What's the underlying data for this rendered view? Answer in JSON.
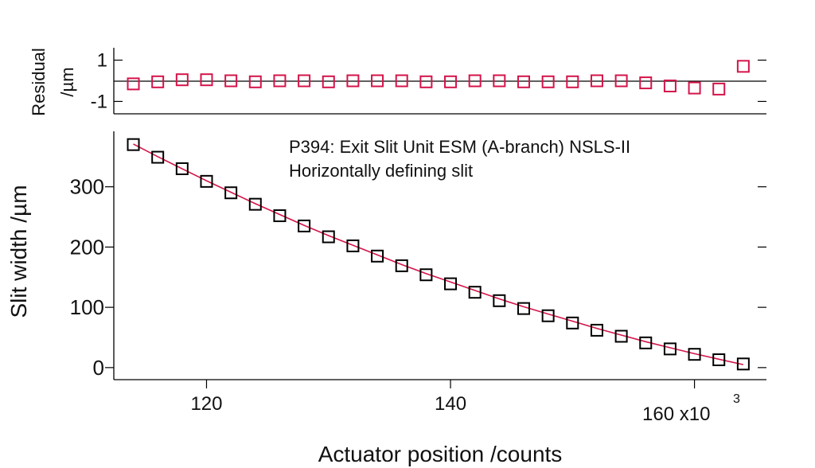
{
  "chart_data": [
    {
      "type": "scatter",
      "panel": "residual",
      "ylabel_line1": "Residual",
      "ylabel_line2": "/µm",
      "ylim": [
        -1.6,
        1.6
      ],
      "yticks": [
        1,
        -1
      ],
      "ytick_labels": [
        "1",
        "-1"
      ],
      "zero_line": true,
      "marker_color": "#d4144a",
      "x": [
        114,
        116,
        118,
        120,
        122,
        124,
        126,
        128,
        130,
        132,
        134,
        136,
        138,
        140,
        142,
        144,
        146,
        148,
        150,
        152,
        154,
        156,
        158,
        160,
        162,
        164
      ],
      "values": [
        -0.15,
        -0.05,
        0.05,
        0.05,
        0.0,
        -0.05,
        0.0,
        0.0,
        -0.05,
        0.0,
        0.0,
        0.0,
        -0.05,
        -0.05,
        0.0,
        0.0,
        -0.05,
        -0.05,
        -0.05,
        0.0,
        0.0,
        -0.1,
        -0.25,
        -0.35,
        -0.4,
        0.7
      ]
    },
    {
      "type": "scatter",
      "panel": "main",
      "annotation_line1": "P394: Exit Slit Unit ESM (A-branch) NSLS-II",
      "annotation_line2": "Horizontally defining slit",
      "xlabel": "Actuator position /counts",
      "ylabel": "Slit width /µm",
      "xlim": [
        112.4,
        165.9
      ],
      "ylim": [
        -20,
        392
      ],
      "xticks": [
        120,
        140,
        160
      ],
      "xtick_labels": [
        "120",
        "140",
        "160"
      ],
      "x_multiplier_label": "x10",
      "x_multiplier_exp": "3",
      "yticks": [
        0,
        100,
        200,
        300
      ],
      "ytick_labels": [
        "0",
        "100",
        "200",
        "300"
      ],
      "marker_color": "#000000",
      "fit_color": "#d4144a",
      "series": [
        {
          "x": [
            114,
            116,
            118,
            120,
            122,
            124,
            126,
            128,
            130,
            132,
            134,
            136,
            138,
            140,
            142,
            144,
            146,
            148,
            150,
            152,
            154,
            156,
            158,
            160,
            162,
            164
          ],
          "values": [
            370,
            349,
            330,
            309,
            290,
            271,
            252,
            235,
            217,
            202,
            185,
            169,
            154,
            139,
            125,
            111,
            98,
            86,
            74,
            62,
            52,
            41,
            31,
            22,
            13,
            6
          ]
        }
      ],
      "fit": {
        "x": [
          114,
          116,
          118,
          120,
          122,
          124,
          126,
          128,
          130,
          132,
          134,
          136,
          138,
          140,
          142,
          144,
          146,
          148,
          150,
          152,
          154,
          156,
          158,
          160,
          162,
          164
        ],
        "values": [
          371,
          350,
          330,
          310,
          291,
          272,
          254,
          236,
          219,
          203,
          187,
          171,
          156,
          142,
          128,
          114,
          101,
          89,
          77,
          65,
          54,
          43,
          33,
          23,
          14,
          5
        ]
      }
    }
  ]
}
